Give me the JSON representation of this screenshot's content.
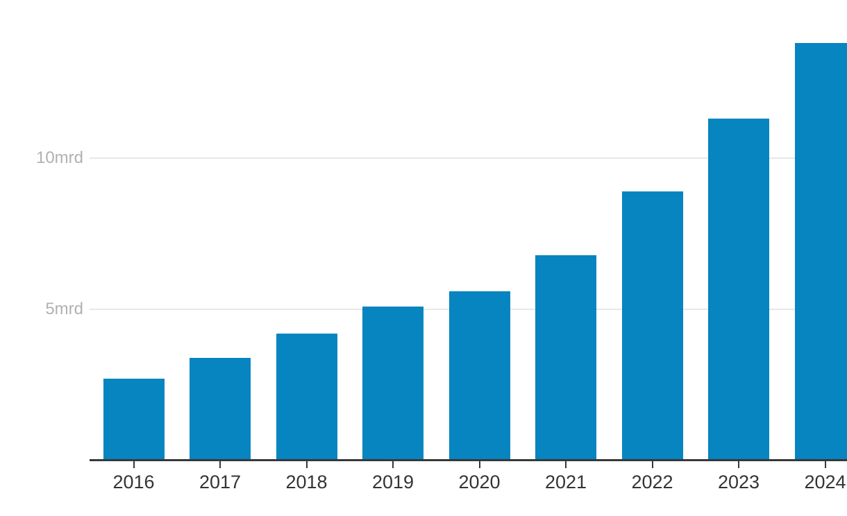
{
  "chart_data": {
    "type": "bar",
    "title": "",
    "subtitle": "",
    "xlabel": "",
    "ylabel": "",
    "unit": "mrd",
    "categories": [
      "2016",
      "2017",
      "2018",
      "2019",
      "2020",
      "2021",
      "2022",
      "2023",
      "2024"
    ],
    "values": [
      2.7,
      3.4,
      4.2,
      5.1,
      5.6,
      6.8,
      8.9,
      11.3,
      13.8
    ],
    "yticks": [
      {
        "value": 5,
        "label": "5mrd"
      },
      {
        "value": 10,
        "label": "10mrd"
      }
    ],
    "ylim": [
      0,
      14
    ],
    "grid": true,
    "legend": false,
    "colors": {
      "bar": "#0685c0",
      "axis": "#383838",
      "gridline": "#e7e7e7",
      "ytick_label": "#b1b1b1",
      "xtick_label": "#343434",
      "background": "#ffffff"
    }
  }
}
